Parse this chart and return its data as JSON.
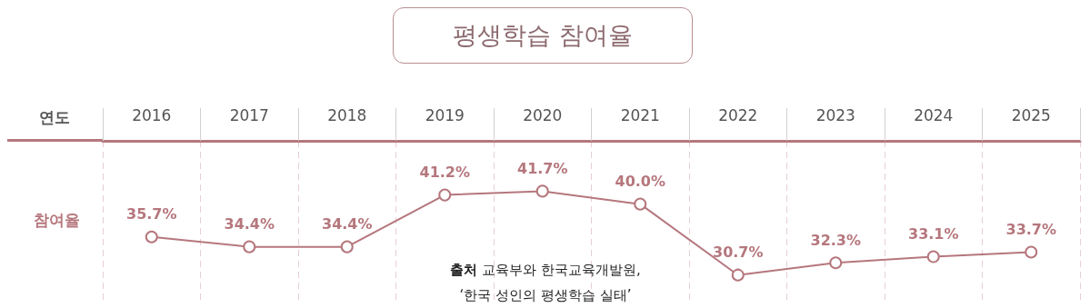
{
  "chart_data": {
    "type": "line",
    "title": "평생학습 참여율",
    "xlabel": "연도",
    "ylabel": "참여율",
    "categories": [
      "2016",
      "2017",
      "2018",
      "2019",
      "2020",
      "2021",
      "2022",
      "2023",
      "2024",
      "2025"
    ],
    "series": [
      {
        "color": "#b5777d",
        "values": [
          35.7,
          34.4,
          34.4,
          41.2,
          41.7,
          40.0,
          30.7,
          32.3,
          33.1,
          33.7
        ],
        "value_labels": [
          "35.7%",
          "34.4%",
          "34.4%",
          "41.2%",
          "41.7%",
          "40.0%",
          "30.7%",
          "32.3%",
          "33.1%",
          "33.7%"
        ]
      }
    ],
    "marker": "circle",
    "line_style": "solid",
    "grid": "x",
    "annotations": [
      "출처 교육부와 한국교육개발원,\n‘한국 성인의 평생학습 실태’"
    ]
  }
}
